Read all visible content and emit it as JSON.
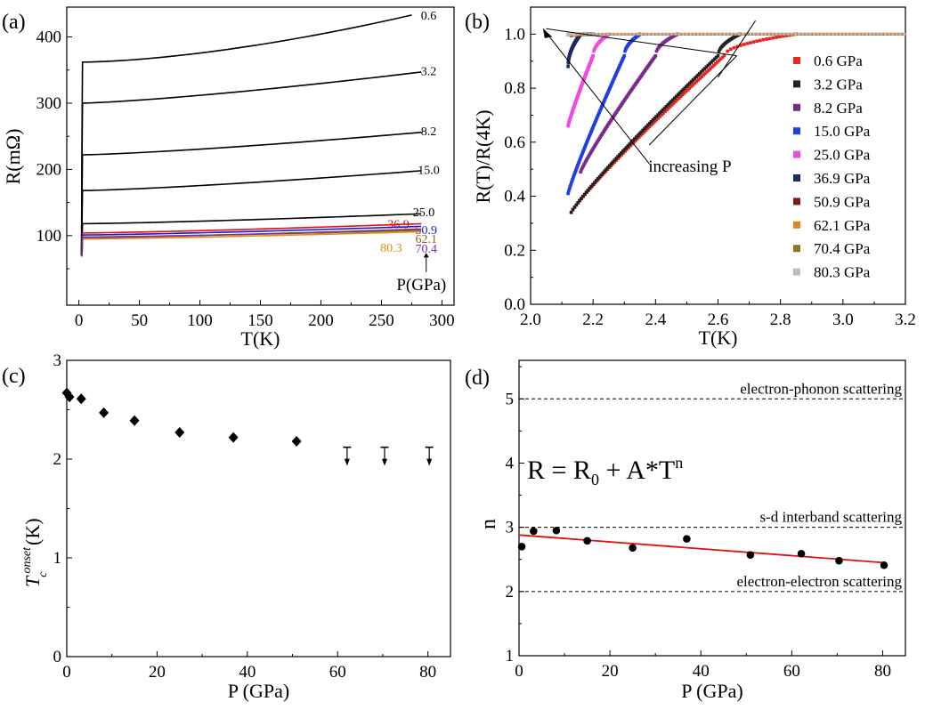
{
  "chart_data": [
    {
      "panel": "(a)",
      "type": "line",
      "xlabel": "T(K)",
      "ylabel": "R(mΩ)",
      "xlim": [
        -10,
        310
      ],
      "ylim": [
        -5,
        445
      ],
      "xticks": [
        "0",
        "50",
        "100",
        "150",
        "200",
        "250",
        "300"
      ],
      "yticks": [
        "100",
        "200",
        "300",
        "400"
      ],
      "pressure_label": "P(GPa)",
      "series": [
        {
          "name": "0.6",
          "color": "#000000",
          "r_low": 362,
          "r_high": 433,
          "t_end": 275
        },
        {
          "name": "3.2",
          "color": "#000000",
          "r_low": 300,
          "r_high": 347,
          "t_end": 283
        },
        {
          "name": "8.2",
          "color": "#000000",
          "r_low": 222,
          "r_high": 256,
          "t_end": 283
        },
        {
          "name": "15.0",
          "color": "#000000",
          "r_low": 168,
          "r_high": 198,
          "t_end": 283
        },
        {
          "name": "25.0",
          "color": "#000000",
          "r_low": 118,
          "r_high": 133,
          "t_end": 283
        },
        {
          "name": "36.9",
          "color": "#dd1111",
          "r_low": 104,
          "r_high": 118,
          "t_end": 283
        },
        {
          "name": "50.9",
          "color": "#1a1acc",
          "r_low": 101,
          "r_high": 114,
          "t_end": 283
        },
        {
          "name": "62.1",
          "color": "#8b6914",
          "r_low": 98,
          "r_high": 108,
          "t_end": 283
        },
        {
          "name": "80.3",
          "color": "#e08a10",
          "r_low": 95,
          "r_high": 106,
          "t_end": 283
        },
        {
          "name": "70.4",
          "color": "#7b2fa0",
          "r_low": 97,
          "r_high": 110,
          "t_end": 283
        }
      ]
    },
    {
      "panel": "(b)",
      "type": "scatter",
      "xlabel": "T(K)",
      "ylabel": "R(T)/R(4K)",
      "xlim": [
        2.0,
        3.2
      ],
      "ylim": [
        0.0,
        1.1
      ],
      "xticks": [
        "2.0",
        "2.2",
        "2.4",
        "2.6",
        "2.8",
        "3.0",
        "3.2"
      ],
      "yticks": [
        "0.0",
        "0.2",
        "0.4",
        "0.6",
        "0.8",
        "1.0"
      ],
      "annotation": "increasing P",
      "legend_position": "right",
      "series": [
        {
          "name": "0.6 GPa",
          "color": "#e8251f",
          "t_start": 2.13,
          "r_start": 0.34,
          "t_mid": 2.62,
          "t_end": 2.85
        },
        {
          "name": "3.2 GPa",
          "color": "#222222",
          "t_start": 2.13,
          "r_start": 0.34,
          "t_mid": 2.6,
          "t_end": 2.67
        },
        {
          "name": "8.2 GPa",
          "color": "#7b2a8c",
          "t_start": 2.16,
          "r_start": 0.49,
          "t_mid": 2.4,
          "t_end": 2.47
        },
        {
          "name": "15.0 GPa",
          "color": "#1f3fe0",
          "t_start": 2.12,
          "r_start": 0.41,
          "t_mid": 2.3,
          "t_end": 2.35
        },
        {
          "name": "25.0 GPa",
          "color": "#f04ae0",
          "t_start": 2.12,
          "r_start": 0.66,
          "t_mid": 2.2,
          "t_end": 2.25
        },
        {
          "name": "36.9 GPa",
          "color": "#1a2a6c",
          "t_start": 2.12,
          "r_start": 0.88,
          "t_mid": 2.16,
          "t_end": 2.2
        },
        {
          "name": "50.9 GPa",
          "color": "#7a1a1a",
          "t_start": 2.13,
          "r_start": 0.995,
          "t_mid": 2.15,
          "t_end": 2.17
        },
        {
          "name": "62.1 GPa",
          "color": "#e8801a",
          "t_start": 2.14,
          "r_start": 0.995,
          "t_mid": 2.15,
          "t_end": 2.16
        },
        {
          "name": "70.4 GPa",
          "color": "#8a7a1a",
          "t_start": 2.12,
          "r_start": 0.998,
          "t_mid": 2.13,
          "t_end": 2.14
        },
        {
          "name": "80.3 GPa",
          "color": "#bbbbbb",
          "t_start": 2.12,
          "r_start": 0.998,
          "t_mid": 2.13,
          "t_end": 2.14
        }
      ]
    },
    {
      "panel": "(c)",
      "type": "scatter",
      "xlabel": "P (GPa)",
      "ylabel_main": "T",
      "ylabel_sub": "c",
      "ylabel_sup": "onset",
      "ylabel_unit": "(K)",
      "xlim": [
        0,
        85
      ],
      "ylim": [
        0,
        3
      ],
      "xticks": [
        "0",
        "20",
        "40",
        "60",
        "80"
      ],
      "yticks": [
        "0",
        "1",
        "2",
        "3"
      ],
      "points": [
        {
          "x": 0.0,
          "y": 2.67
        },
        {
          "x": 0.6,
          "y": 2.63
        },
        {
          "x": 3.2,
          "y": 2.61
        },
        {
          "x": 8.2,
          "y": 2.47
        },
        {
          "x": 15.0,
          "y": 2.39
        },
        {
          "x": 25.0,
          "y": 2.27
        },
        {
          "x": 36.9,
          "y": 2.22
        },
        {
          "x": 50.9,
          "y": 2.18
        }
      ],
      "upper_limits": [
        {
          "x": 62.1,
          "y": 2.12
        },
        {
          "x": 70.4,
          "y": 2.12
        },
        {
          "x": 80.3,
          "y": 2.12
        }
      ]
    },
    {
      "panel": "(d)",
      "type": "scatter",
      "xlabel": "P (GPa)",
      "ylabel": "n",
      "xlim": [
        0,
        85
      ],
      "ylim": [
        1,
        5.6
      ],
      "xticks": [
        "0",
        "20",
        "40",
        "60",
        "80"
      ],
      "yticks": [
        "1",
        "2",
        "3",
        "4",
        "5"
      ],
      "equation": {
        "lhs": "R = R",
        "sub": "0",
        "mid": " + A*T",
        "sup": "n"
      },
      "reference_lines": [
        {
          "y": 5,
          "label": "electron-phonon scattering"
        },
        {
          "y": 3,
          "label": "s-d interband scattering"
        },
        {
          "y": 2,
          "label": "electron-electron scattering"
        }
      ],
      "points": [
        {
          "x": 0.6,
          "y": 2.7
        },
        {
          "x": 3.2,
          "y": 2.94
        },
        {
          "x": 8.2,
          "y": 2.95
        },
        {
          "x": 15.0,
          "y": 2.79
        },
        {
          "x": 25.0,
          "y": 2.68
        },
        {
          "x": 36.9,
          "y": 2.82
        },
        {
          "x": 50.9,
          "y": 2.57
        },
        {
          "x": 62.1,
          "y": 2.59
        },
        {
          "x": 70.4,
          "y": 2.48
        },
        {
          "x": 80.3,
          "y": 2.41
        }
      ],
      "fit": {
        "x": [
          0,
          80.3
        ],
        "y": [
          2.88,
          2.45
        ],
        "color": "#e01010"
      }
    }
  ]
}
